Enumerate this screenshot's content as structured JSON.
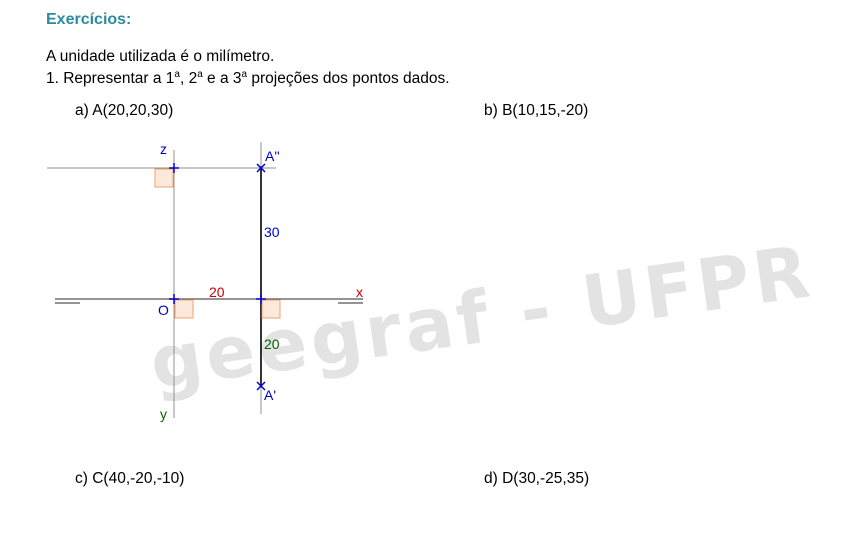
{
  "heading": "Exercícios:",
  "intro": "A unidade utilizada é o milímetro.",
  "task": {
    "prefix": "1. Representar a 1",
    "ord1": "a",
    "sep1": ", 2",
    "ord2": "a",
    "sep2": " e a 3",
    "ord3": "a",
    "suffix": " projeções dos pontos dados."
  },
  "items": {
    "a": "a)   A(20,20,30)",
    "b": "b) B(10,15,-20)",
    "c": "c) C(40,-20,-10)",
    "d": "d) D(30,-25,35)"
  },
  "drawing": {
    "labels": {
      "z": "z",
      "y": "y",
      "x": "x",
      "origin": "O",
      "a2": "A''",
      "a1": "A'",
      "dist_x": "20",
      "dist_z": "30",
      "dist_y": "20"
    },
    "colors": {
      "point": "#0000cc",
      "x_label": "#cc0000",
      "y_label": "#006600",
      "right_angle": "#f0a070"
    }
  },
  "watermark": "geegraf - UFPR"
}
